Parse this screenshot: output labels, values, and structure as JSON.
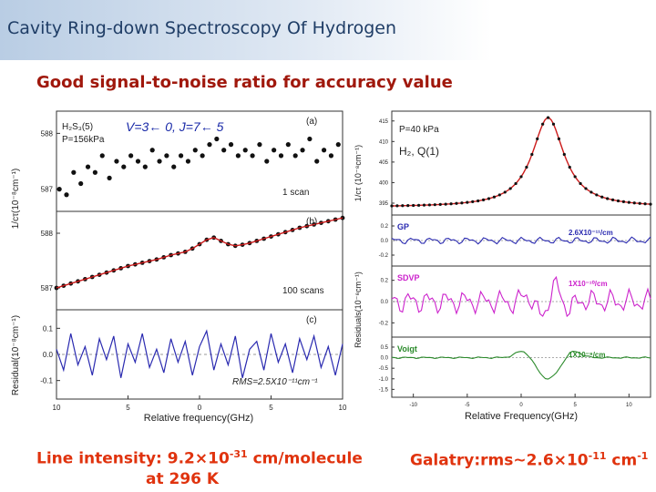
{
  "header": {
    "title": "Cavity Ring-down Spectroscopy Of Hydrogen",
    "subtitle": "Good signal-to-noise ratio for accuracy value"
  },
  "colors": {
    "accent_red": "#e0330e",
    "fit_red": "#cc1a1a",
    "gp_blue": "#2a2ab0",
    "sdvp_magenta": "#cc22cc",
    "voigt_green": "#2a8a2a"
  },
  "footer": {
    "left_prefix": "Line intensity: 9.2",
    "left_times": "×",
    "left_mant": "10",
    "left_exp": "-31",
    "left_unit": " cm/molecule",
    "left_line2": "at 296 K",
    "right_prefix": "Galatry:rms",
    "right_tilde": "~",
    "right_val": "2.6",
    "right_times": "×",
    "right_mant": "10",
    "right_exp": "-11",
    "right_unit": " cm",
    "right_unit_exp": "-1"
  },
  "chart_data": [
    {
      "type": "scatter",
      "panel": "left",
      "title_label": "V=3← 0, J=7← 5",
      "species_label": "H₂S₃(5)",
      "pressure_label": "P=156kPa",
      "xlabel": "Relative frequency(GHz)",
      "x_ticks": [
        "10",
        "5",
        "0",
        "5",
        "10"
      ],
      "xlim": [
        -10,
        10
      ],
      "subplots": [
        {
          "tag": "(a)",
          "note": "1 scan",
          "ylabel": "1/cτ(10⁻⁸cm⁻¹)",
          "y_ticks": [
            "588",
            "587"
          ],
          "ylim": [
            586.7,
            588.3
          ],
          "x": [
            -9.8,
            -9.3,
            -8.8,
            -8.3,
            -7.8,
            -7.3,
            -6.8,
            -6.3,
            -5.8,
            -5.3,
            -4.8,
            -4.3,
            -3.8,
            -3.3,
            -2.8,
            -2.3,
            -1.8,
            -1.3,
            -0.8,
            -0.3,
            0.2,
            0.7,
            1.2,
            1.7,
            2.2,
            2.7,
            3.2,
            3.7,
            4.2,
            4.7,
            5.2,
            5.7,
            6.2,
            6.7,
            7.2,
            7.7,
            8.2,
            8.7,
            9.2,
            9.7
          ],
          "y": [
            587.0,
            586.9,
            587.3,
            587.1,
            587.4,
            587.3,
            587.6,
            587.2,
            587.5,
            587.4,
            587.6,
            587.5,
            587.4,
            587.7,
            587.5,
            587.6,
            587.4,
            587.6,
            587.5,
            587.7,
            587.6,
            587.8,
            587.9,
            587.7,
            587.8,
            587.6,
            587.7,
            587.6,
            587.8,
            587.5,
            587.7,
            587.6,
            587.8,
            587.6,
            587.7,
            587.9,
            587.5,
            587.7,
            587.6,
            587.8
          ]
        },
        {
          "tag": "(b)",
          "note": "100 scans",
          "ylabel": "",
          "y_ticks": [
            "588",
            "587"
          ],
          "ylim": [
            586.7,
            588.3
          ],
          "x": [
            -10,
            -9.5,
            -9,
            -8.5,
            -8,
            -7.5,
            -7,
            -6.5,
            -6,
            -5.5,
            -5,
            -4.5,
            -4,
            -3.5,
            -3,
            -2.5,
            -2,
            -1.5,
            -1,
            -0.5,
            0,
            0.5,
            1,
            1.5,
            2,
            2.5,
            3,
            3.5,
            4,
            4.5,
            5,
            5.5,
            6,
            6.5,
            7,
            7.5,
            8,
            8.5,
            9,
            9.5,
            10
          ],
          "y": [
            587.0,
            587.04,
            587.08,
            587.12,
            587.16,
            587.2,
            587.24,
            587.28,
            587.32,
            587.36,
            587.4,
            587.43,
            587.46,
            587.49,
            587.52,
            587.56,
            587.6,
            587.63,
            587.66,
            587.72,
            587.8,
            587.88,
            587.92,
            587.86,
            587.8,
            587.77,
            587.79,
            587.82,
            587.86,
            587.9,
            587.94,
            587.98,
            588.02,
            588.06,
            588.1,
            588.13,
            588.16,
            588.19,
            588.22,
            588.25,
            588.28
          ]
        },
        {
          "tag": "(c)",
          "note": "RMS=2.5X10⁻¹¹cm⁻¹",
          "ylabel": "Residual(10⁻⁸cm⁻¹)",
          "y_ticks": [
            "0.1",
            "0.0",
            "-0.1"
          ],
          "ylim": [
            -0.15,
            0.15
          ],
          "x": [
            -10,
            -9.5,
            -9,
            -8.5,
            -8,
            -7.5,
            -7,
            -6.5,
            -6,
            -5.5,
            -5,
            -4.5,
            -4,
            -3.5,
            -3,
            -2.5,
            -2,
            -1.5,
            -1,
            -0.5,
            0,
            0.5,
            1,
            1.5,
            2,
            2.5,
            3,
            3.5,
            4,
            4.5,
            5,
            5.5,
            6,
            6.5,
            7,
            7.5,
            8,
            8.5,
            9,
            9.5,
            10
          ],
          "y": [
            0.02,
            -0.06,
            0.08,
            -0.04,
            0.03,
            -0.08,
            0.06,
            -0.02,
            0.07,
            -0.09,
            0.04,
            -0.03,
            0.08,
            -0.05,
            0.02,
            -0.07,
            0.06,
            -0.03,
            0.05,
            -0.08,
            0.03,
            0.09,
            -0.06,
            0.04,
            -0.04,
            0.07,
            -0.09,
            0.02,
            0.05,
            -0.06,
            0.08,
            -0.03,
            0.04,
            -0.07,
            0.06,
            -0.02,
            0.07,
            -0.05,
            0.03,
            -0.08,
            0.04
          ]
        }
      ]
    },
    {
      "type": "line",
      "panel": "right",
      "pressure_label": "P=40 kPa",
      "species_label": "H₂, Q(1)",
      "xlabel": "Relative Frequency(GHz)",
      "xlim": [
        -12,
        12
      ],
      "x_ticks": [
        "-10",
        "-5",
        "0",
        "5",
        "10"
      ],
      "subplots": [
        {
          "ylabel": "1/cτ (10⁻⁸cm⁻¹)",
          "y_ticks": [
            "415",
            "410",
            "405",
            "400",
            "395"
          ],
          "ylim": [
            393,
            416.5
          ],
          "peak": {
            "center": 2.5,
            "width": 1.8,
            "base": 394,
            "height": 21.8
          },
          "note": ""
        },
        {
          "label": "GP",
          "ylabel": "Residuals(10⁻⁸cm⁻¹)",
          "rms": "2.6X10⁻¹¹/cm",
          "y_ticks": [
            "0.2",
            "0.0",
            "-0.2"
          ],
          "ylim": [
            -0.3,
            0.3
          ],
          "amplitude": 0.05,
          "dip": 0.0
        },
        {
          "label": "SDVP",
          "ylabel": "",
          "rms": "1X10⁻¹⁰/cm",
          "y_ticks": [
            "0.2",
            "0.0",
            "-0.2"
          ],
          "ylim": [
            -0.3,
            0.3
          ],
          "amplitude": 0.12,
          "dip": 0.0
        },
        {
          "label": "Voigt",
          "ylabel": "",
          "rms": "1X10⁻⁹/cm",
          "y_ticks": [
            "0.5",
            "0.0",
            "-0.5",
            "-1.0",
            "-1.5"
          ],
          "ylim": [
            -1.7,
            0.8
          ],
          "amplitude": 0.04,
          "dip": 1.0
        }
      ]
    }
  ]
}
